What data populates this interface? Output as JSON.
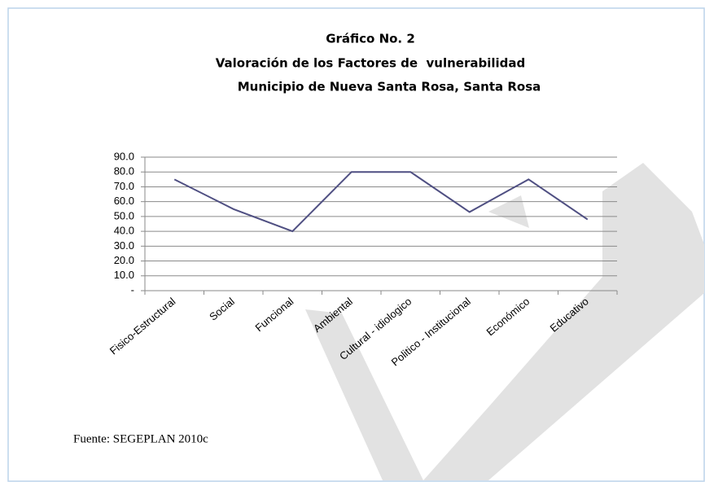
{
  "chart_data": {
    "type": "line",
    "title": [
      "Gráfico No. 2",
      "Valoración de los Factores de  vulnerabilidad",
      "Municipio de Nueva Santa Rosa, Santa Rosa"
    ],
    "categories": [
      "Fisico-Estructural",
      "Social",
      "Funcional",
      "Ambiental",
      "Cultural - idiologico",
      "Politico - Institucional",
      "Económico",
      "Educativo"
    ],
    "values": [
      75,
      55,
      40,
      80,
      80,
      53,
      75,
      48
    ],
    "color": "#4f4f82",
    "ylim": [
      0,
      90
    ],
    "yticks": [
      {
        "value": 0,
        "label": "-"
      },
      {
        "value": 10,
        "label": "10.0"
      },
      {
        "value": 20,
        "label": "20.0"
      },
      {
        "value": 30,
        "label": "30.0"
      },
      {
        "value": 40,
        "label": "40.0"
      },
      {
        "value": 50,
        "label": "50.0"
      },
      {
        "value": 60,
        "label": "60.0"
      },
      {
        "value": 70,
        "label": "70.0"
      },
      {
        "value": 80,
        "label": "80.0"
      },
      {
        "value": 90,
        "label": "90.0"
      }
    ],
    "grid": true,
    "annotations": [
      "Fuente: SEGEPLAN 2010c"
    ]
  }
}
